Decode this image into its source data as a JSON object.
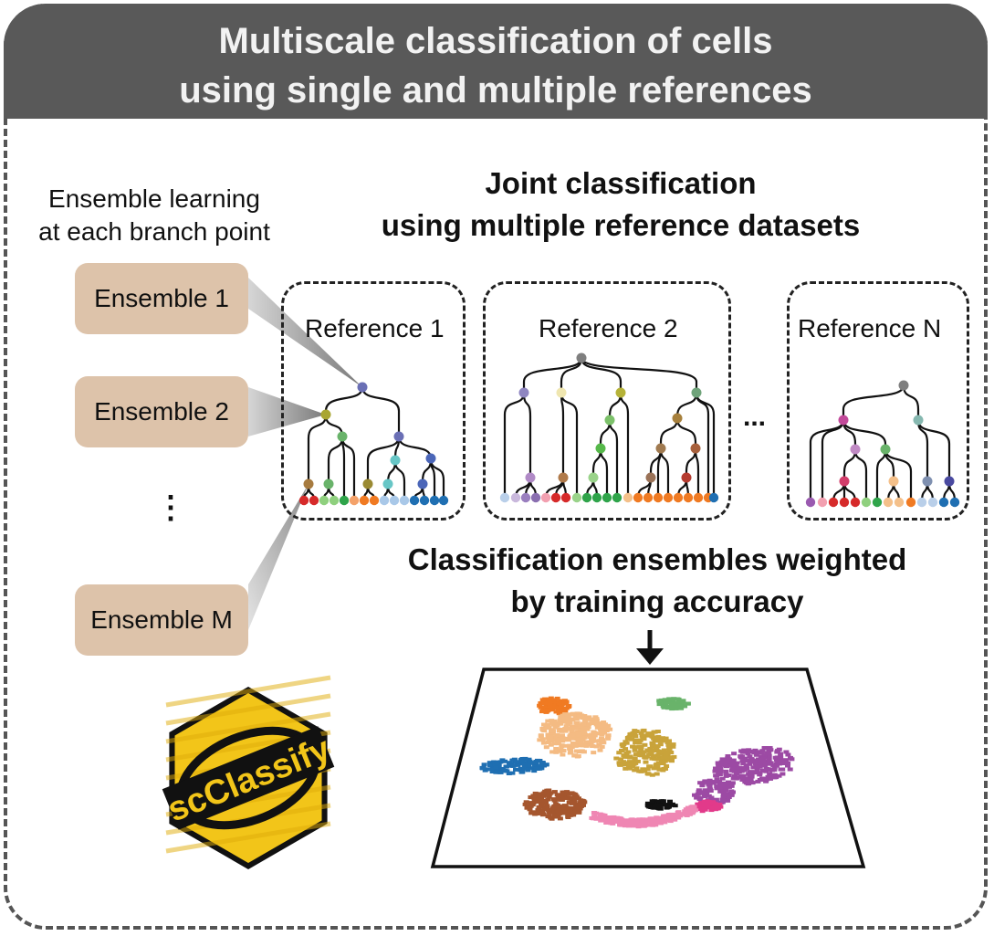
{
  "header": {
    "line1": "Multiscale classification of cells",
    "line2": "using single and multiple references"
  },
  "left": {
    "caption1": "Ensemble learning",
    "caption2": "at each branch point",
    "ensembles": [
      "Ensemble 1",
      "Ensemble 2",
      "Ensemble M"
    ],
    "vdots": "⋮"
  },
  "joint": {
    "line1": "Joint classification",
    "line2": "using multiple reference datasets"
  },
  "references": [
    "Reference 1",
    "Reference 2",
    "Reference N"
  ],
  "between_dots": "...",
  "weighted": {
    "line1": "Classification ensembles weighted",
    "line2": "by training accuracy"
  },
  "logo_text": "scClassify",
  "colors": {
    "header_bg": "#595959",
    "ensemble_box": "#ddc3aa",
    "logo_yellow": "#f2c519"
  }
}
